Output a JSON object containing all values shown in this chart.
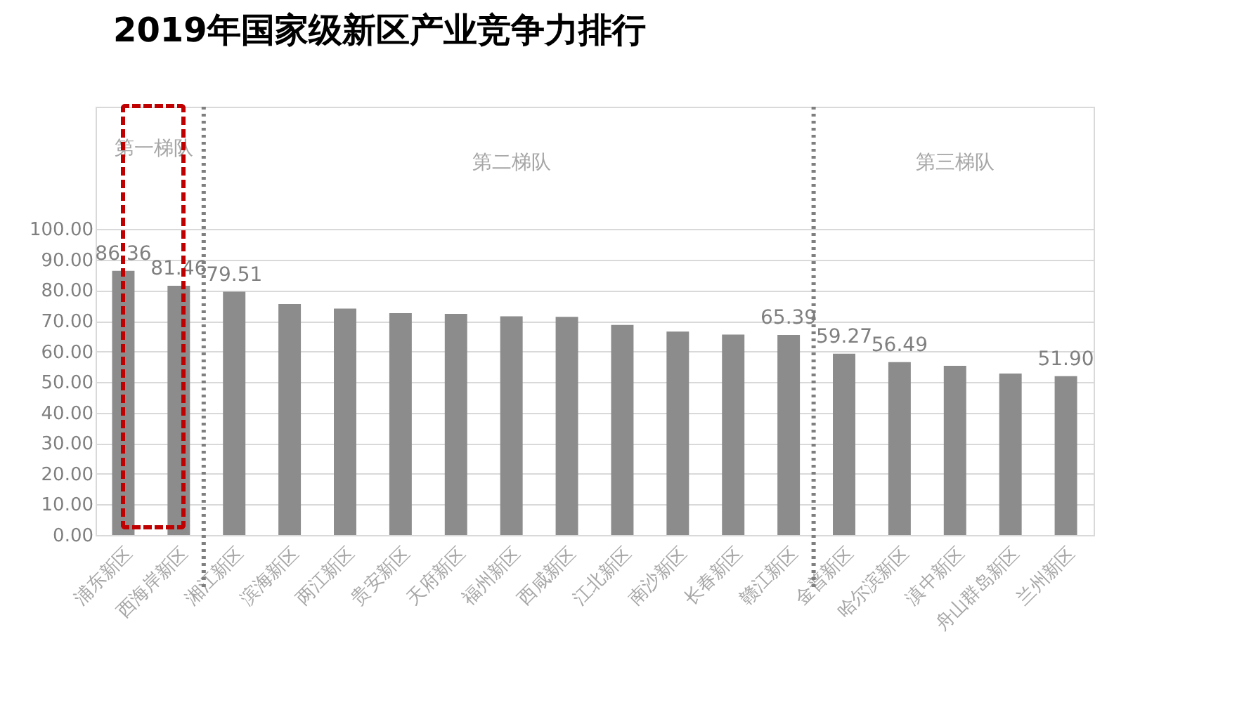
{
  "chart_data": {
    "type": "bar",
    "title": "2019年国家级新区产业竞争力排行",
    "categories": [
      "浦东新区",
      "西海岸新区",
      "湘江新区",
      "滨海新区",
      "两江新区",
      "贵安新区",
      "天府新区",
      "福州新区",
      "西咸新区",
      "江北新区",
      "南沙新区",
      "长春新区",
      "赣江新区",
      "金普新区",
      "哈尔滨新区",
      "滇中新区",
      "舟山群岛新区",
      "兰州新区"
    ],
    "values": [
      86.36,
      81.46,
      79.51,
      75.5,
      74.0,
      72.5,
      72.3,
      71.5,
      71.3,
      68.7,
      66.5,
      65.5,
      65.39,
      59.27,
      56.49,
      55.3,
      52.8,
      51.9
    ],
    "value_labels": [
      "86.36",
      "81.46",
      "79.51",
      null,
      null,
      null,
      null,
      null,
      null,
      null,
      null,
      null,
      "65.39",
      "59.27",
      "56.49",
      null,
      null,
      "51.90"
    ],
    "color": "#8c8c8c",
    "ylim": [
      0,
      140
    ],
    "yticks": [
      {
        "value": 0,
        "label": "0.00"
      },
      {
        "value": 10,
        "label": "10.00"
      },
      {
        "value": 20,
        "label": "20.00"
      },
      {
        "value": 30,
        "label": "30.00"
      },
      {
        "value": 40,
        "label": "40.00"
      },
      {
        "value": 50,
        "label": "50.00"
      },
      {
        "value": 60,
        "label": "60.00"
      },
      {
        "value": 70,
        "label": "70.00"
      },
      {
        "value": 80,
        "label": "80.00"
      },
      {
        "value": 90,
        "label": "90.00"
      },
      {
        "value": 100,
        "label": "100.00"
      }
    ],
    "grid": "y",
    "annotations": [
      "第一梯队",
      "第二梯队",
      "第三梯队"
    ],
    "ref_lines": [
      {
        "axis": "x",
        "value": "西海岸新区",
        "line_style": "dotted",
        "color": "#7f7f7f"
      },
      {
        "axis": "x",
        "value": "赣江新区",
        "line_style": "dotted",
        "color": "#7f7f7f"
      }
    ]
  }
}
